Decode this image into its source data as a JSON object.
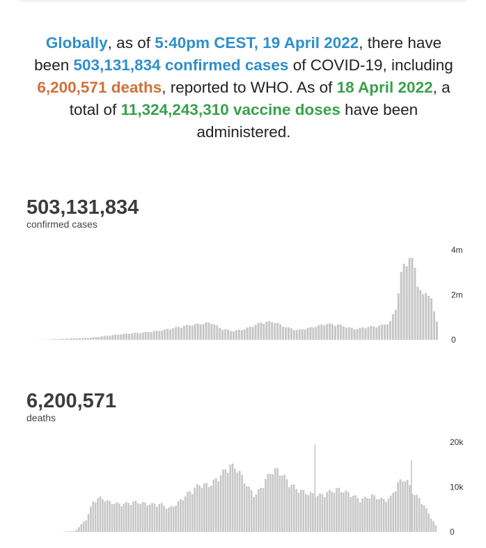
{
  "summary": {
    "p1": "Globally",
    "p2": ", as of ",
    "p3": "5:40pm CEST, 19 April 2022",
    "p4": ", there have been ",
    "p5": "503,131,834 confirmed cases",
    "p6": " of COVID-19, including ",
    "p7": "6,200,571 deaths",
    "p8": ", reported to WHO. As of ",
    "p9": "18 April 2022",
    "p10": ", a total of ",
    "p11": "11,324,243,310 vaccine doses",
    "p12": " have been administered."
  },
  "colors": {
    "blue": "#2e8fc9",
    "orange": "#d0703a",
    "green": "#3aa04a",
    "bars": "#c6c6c6"
  },
  "chart_data": [
    {
      "type": "bar",
      "stat_value": "503,131,834",
      "stat_label": "confirmed cases",
      "title": "",
      "xlabel": "",
      "ylabel": "",
      "ylim": [
        0,
        4400000
      ],
      "yticks": [
        {
          "value": 0,
          "label": "0"
        },
        {
          "value": 2000000,
          "label": "2m"
        },
        {
          "value": 4000000,
          "label": "4m"
        }
      ],
      "grid": false,
      "keypoints_x_fraction_note": "approximate weekly-bar envelope over ~27 months",
      "envelope": [
        [
          0,
          0
        ],
        [
          0.05,
          10000
        ],
        [
          0.1,
          60000
        ],
        [
          0.15,
          90000
        ],
        [
          0.2,
          200000
        ],
        [
          0.25,
          300000
        ],
        [
          0.29,
          350000
        ],
        [
          0.33,
          450000
        ],
        [
          0.37,
          600000
        ],
        [
          0.4,
          700000
        ],
        [
          0.45,
          800000
        ],
        [
          0.47,
          550000
        ],
        [
          0.5,
          400000
        ],
        [
          0.53,
          500000
        ],
        [
          0.57,
          800000
        ],
        [
          0.6,
          850000
        ],
        [
          0.63,
          600000
        ],
        [
          0.66,
          450000
        ],
        [
          0.7,
          600000
        ],
        [
          0.73,
          750000
        ],
        [
          0.76,
          700000
        ],
        [
          0.8,
          500000
        ],
        [
          0.83,
          600000
        ],
        [
          0.86,
          650000
        ],
        [
          0.885,
          800000
        ],
        [
          0.9,
          1500000
        ],
        [
          0.915,
          3300000
        ],
        [
          0.93,
          3900000
        ],
        [
          0.945,
          3500000
        ],
        [
          0.955,
          2500000
        ],
        [
          0.965,
          2000000
        ],
        [
          0.975,
          2300000
        ],
        [
          0.985,
          2000000
        ],
        [
          0.993,
          1300000
        ],
        [
          1.0,
          900000
        ]
      ]
    },
    {
      "type": "bar",
      "stat_value": "6,200,571",
      "stat_label": "deaths",
      "title": "",
      "xlabel": "",
      "ylabel": "",
      "ylim": [
        0,
        22000
      ],
      "yticks": [
        {
          "value": 0,
          "label": "0"
        },
        {
          "value": 10000,
          "label": "10k"
        },
        {
          "value": 20000,
          "label": "20k"
        }
      ],
      "grid": false,
      "spikes": [
        {
          "x": 0.675,
          "value": 19500
        },
        {
          "x": 0.93,
          "value": 16000
        }
      ],
      "envelope": [
        [
          0,
          0
        ],
        [
          0.04,
          200
        ],
        [
          0.07,
          3000
        ],
        [
          0.09,
          7500
        ],
        [
          0.11,
          8000
        ],
        [
          0.13,
          7000
        ],
        [
          0.16,
          6500
        ],
        [
          0.2,
          7000
        ],
        [
          0.24,
          6500
        ],
        [
          0.27,
          6500
        ],
        [
          0.29,
          5500
        ],
        [
          0.31,
          6500
        ],
        [
          0.34,
          9000
        ],
        [
          0.37,
          11000
        ],
        [
          0.4,
          11000
        ],
        [
          0.43,
          13500
        ],
        [
          0.45,
          15500
        ],
        [
          0.47,
          15000
        ],
        [
          0.5,
          10500
        ],
        [
          0.52,
          8500
        ],
        [
          0.54,
          11000
        ],
        [
          0.56,
          14000
        ],
        [
          0.58,
          14500
        ],
        [
          0.61,
          11500
        ],
        [
          0.63,
          10000
        ],
        [
          0.66,
          9000
        ],
        [
          0.69,
          8500
        ],
        [
          0.72,
          9500
        ],
        [
          0.74,
          10000
        ],
        [
          0.77,
          9000
        ],
        [
          0.8,
          7500
        ],
        [
          0.83,
          8500
        ],
        [
          0.86,
          7500
        ],
        [
          0.88,
          8000
        ],
        [
          0.9,
          11500
        ],
        [
          0.92,
          12500
        ],
        [
          0.94,
          9000
        ],
        [
          0.96,
          7500
        ],
        [
          0.98,
          4500
        ],
        [
          1.0,
          1500
        ]
      ]
    }
  ]
}
